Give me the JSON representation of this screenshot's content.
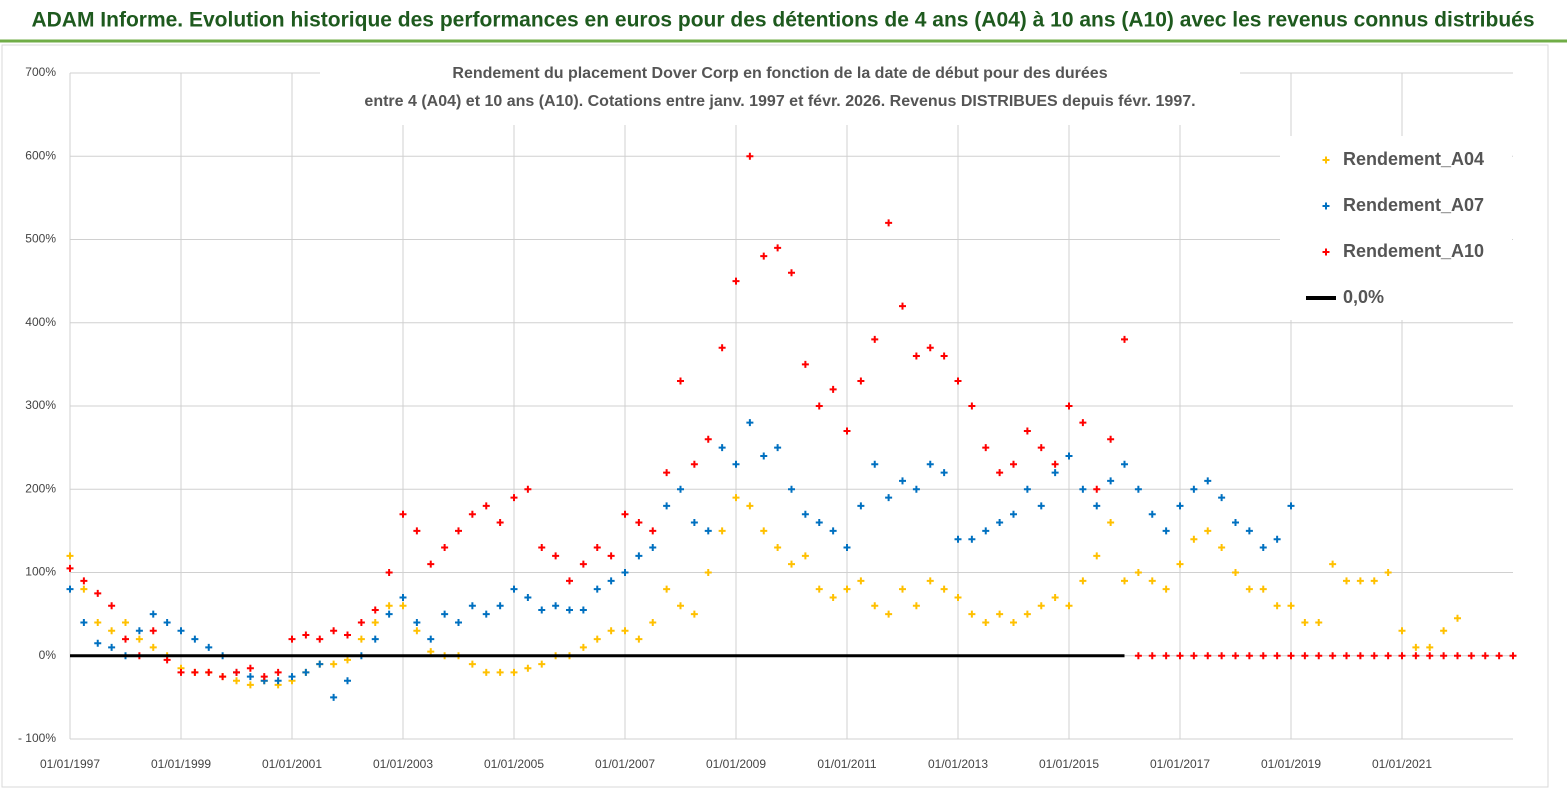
{
  "header": {
    "title": "ADAM Informe. Evolution historique des performances en euros pour des détentions de 4 ans (A04) à 10 ans (A10) avec les revenus connus distribués"
  },
  "chart_data": {
    "type": "scatter",
    "title": [
      "Rendement du placement Dover Corp en fonction de la date de début pour des durées",
      "entre 4 (A04) et 10 ans (A10). Cotations entre janv. 1997 et févr. 2026. Revenus DISTRIBUES depuis févr. 1997."
    ],
    "x": [
      1997,
      1997.25,
      1997.5,
      1997.75,
      1998,
      1998.25,
      1998.5,
      1998.75,
      1999,
      1999.25,
      1999.5,
      1999.75,
      2000,
      2000.25,
      2000.5,
      2000.75,
      2001,
      2001.25,
      2001.5,
      2001.75,
      2002,
      2002.25,
      2002.5,
      2002.75,
      2003,
      2003.25,
      2003.5,
      2003.75,
      2004,
      2004.25,
      2004.5,
      2004.75,
      2005,
      2005.25,
      2005.5,
      2005.75,
      2006,
      2006.25,
      2006.5,
      2006.75,
      2007,
      2007.25,
      2007.5,
      2007.75,
      2008,
      2008.25,
      2008.5,
      2008.75,
      2009,
      2009.25,
      2009.5,
      2009.75,
      2010,
      2010.25,
      2010.5,
      2010.75,
      2011,
      2011.25,
      2011.5,
      2011.75,
      2012,
      2012.25,
      2012.5,
      2012.75,
      2013,
      2013.25,
      2013.5,
      2013.75,
      2014,
      2014.25,
      2014.5,
      2014.75,
      2015,
      2015.25,
      2015.5,
      2015.75,
      2016,
      2016.25,
      2016.5,
      2016.75,
      2017,
      2017.25,
      2017.5,
      2017.75,
      2018,
      2018.25,
      2018.5,
      2018.75,
      2019,
      2019.25,
      2019.5,
      2019.75,
      2020,
      2020.25,
      2020.5,
      2020.75,
      2021,
      2021.25,
      2021.5,
      2021.75,
      2022,
      2022.25,
      2022.5,
      2022.75,
      2023
    ],
    "series": [
      {
        "name": "Rendement_A04",
        "color": "#ffc000",
        "values": [
          120,
          80,
          40,
          30,
          40,
          20,
          10,
          0,
          -15,
          -20,
          -20,
          -25,
          -30,
          -35,
          -30,
          -35,
          -30,
          -20,
          -10,
          -10,
          -5,
          20,
          40,
          60,
          60,
          30,
          5,
          0,
          0,
          -10,
          -20,
          -20,
          -20,
          -15,
          -10,
          0,
          0,
          10,
          20,
          30,
          30,
          20,
          40,
          80,
          60,
          50,
          100,
          150,
          190,
          180,
          150,
          130,
          110,
          120,
          80,
          70,
          80,
          90,
          60,
          50,
          80,
          60,
          90,
          80,
          70,
          50,
          40,
          50,
          40,
          50,
          60,
          70,
          60,
          90,
          120,
          160,
          90,
          100,
          90,
          80,
          110,
          140,
          150,
          130,
          100,
          80,
          80,
          60,
          60,
          40,
          40,
          110,
          90,
          90,
          90,
          100,
          30,
          10,
          10,
          30,
          45,
          null,
          null,
          null,
          null
        ]
      },
      {
        "name": "Rendement_A07",
        "color": "#0070c0",
        "values": [
          80,
          40,
          15,
          10,
          0,
          30,
          50,
          40,
          30,
          20,
          10,
          0,
          -20,
          -25,
          -30,
          -30,
          -25,
          -20,
          -10,
          -50,
          -30,
          0,
          20,
          50,
          70,
          40,
          20,
          50,
          40,
          60,
          50,
          60,
          80,
          70,
          55,
          60,
          55,
          55,
          80,
          90,
          100,
          120,
          130,
          180,
          200,
          160,
          150,
          250,
          230,
          280,
          240,
          250,
          200,
          170,
          160,
          150,
          130,
          180,
          230,
          190,
          210,
          200,
          230,
          220,
          140,
          140,
          150,
          160,
          170,
          200,
          180,
          220,
          240,
          200,
          180,
          210,
          230,
          200,
          170,
          150,
          180,
          200,
          210,
          190,
          160,
          150,
          130,
          140,
          180,
          null,
          null,
          null,
          null,
          null,
          null,
          null,
          null,
          null,
          null,
          null,
          null,
          null,
          null,
          null,
          null
        ]
      },
      {
        "name": "Rendement_A10",
        "color": "#ff0000",
        "values": [
          105,
          90,
          75,
          60,
          20,
          0,
          30,
          -5,
          -20,
          -20,
          -20,
          -25,
          -20,
          -15,
          -25,
          -20,
          20,
          25,
          20,
          30,
          25,
          40,
          55,
          100,
          170,
          150,
          110,
          130,
          150,
          170,
          180,
          160,
          190,
          200,
          130,
          120,
          90,
          110,
          130,
          120,
          170,
          160,
          150,
          220,
          330,
          230,
          260,
          370,
          450,
          600,
          480,
          490,
          460,
          350,
          300,
          320,
          270,
          330,
          380,
          520,
          420,
          360,
          370,
          360,
          330,
          300,
          250,
          220,
          230,
          270,
          250,
          230,
          300,
          280,
          200,
          260,
          380,
          0,
          0,
          0,
          0,
          0,
          0,
          0,
          0,
          0,
          0,
          0,
          0,
          0,
          0,
          0,
          0,
          0,
          0,
          0,
          0,
          0,
          0,
          0,
          0,
          0,
          0,
          0,
          0
        ]
      },
      {
        "name": "0,0%",
        "color": "#000000",
        "type": "line",
        "x": [
          1997,
          2016
        ],
        "values": [
          0,
          0
        ]
      }
    ],
    "xlim": [
      1997,
      2023
    ],
    "xticks": [
      {
        "value": 1997,
        "label": "01/01/1997"
      },
      {
        "value": 1999,
        "label": "01/01/1999"
      },
      {
        "value": 2001,
        "label": "01/01/2001"
      },
      {
        "value": 2003,
        "label": "01/01/2003"
      },
      {
        "value": 2005,
        "label": "01/01/2005"
      },
      {
        "value": 2007,
        "label": "01/01/2007"
      },
      {
        "value": 2009,
        "label": "01/01/2009"
      },
      {
        "value": 2011,
        "label": "01/01/2011"
      },
      {
        "value": 2013,
        "label": "01/01/2013"
      },
      {
        "value": 2015,
        "label": "01/01/2015"
      },
      {
        "value": 2017,
        "label": "01/01/2017"
      },
      {
        "value": 2019,
        "label": "01/01/2019"
      },
      {
        "value": 2021,
        "label": "01/01/2021"
      }
    ],
    "ylim": [
      -100,
      700
    ],
    "yticks": [
      {
        "value": -100,
        "label": "- 100%"
      },
      {
        "value": 0,
        "label": "0%"
      },
      {
        "value": 100,
        "label": "100%"
      },
      {
        "value": 200,
        "label": "200%"
      },
      {
        "value": 300,
        "label": "300%"
      },
      {
        "value": 400,
        "label": "400%"
      },
      {
        "value": 500,
        "label": "500%"
      },
      {
        "value": 600,
        "label": "600%"
      },
      {
        "value": 700,
        "label": "700%"
      }
    ],
    "grid": true,
    "legend": "upper right"
  }
}
